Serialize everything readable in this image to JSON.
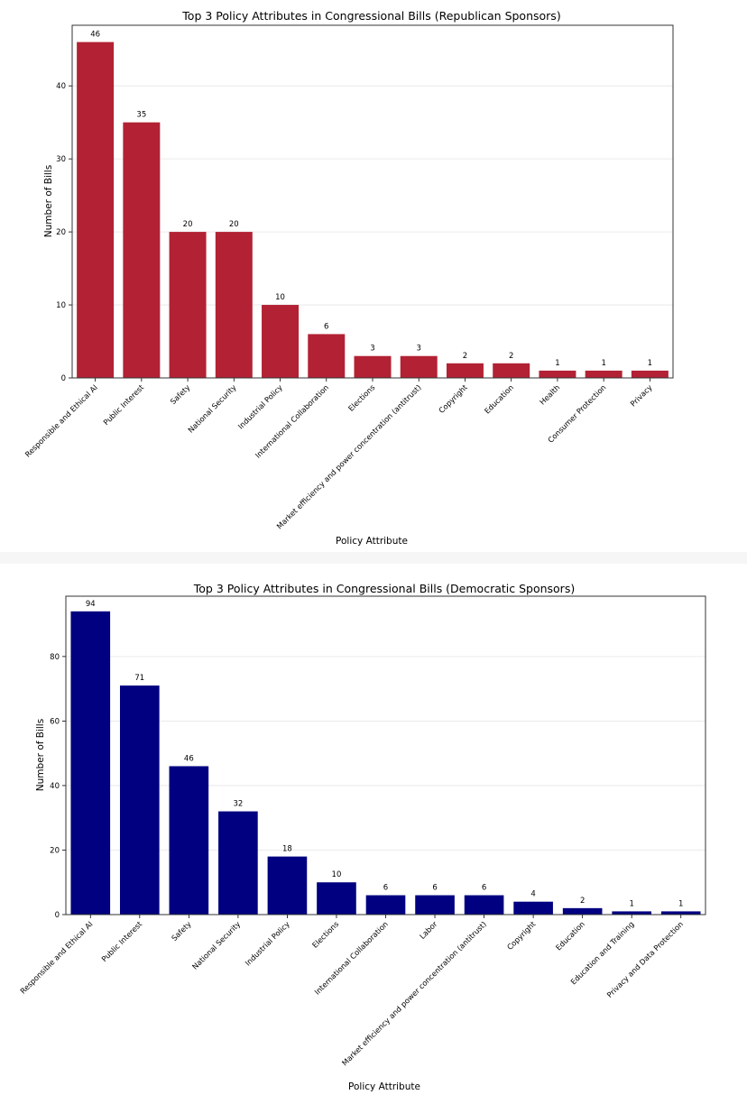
{
  "chart_data": [
    {
      "type": "bar",
      "title": "Top 3 Policy Attributes in Congressional Bills (Republican Sponsors)",
      "xlabel": "Policy Attribute",
      "ylabel": "Number of Bills",
      "categories": [
        "Responsible and Ethical AI",
        "Public Interest",
        "Safety",
        "National Security",
        "Industrial Policy",
        "International Collaboration",
        "Elections",
        "Market efficiency and power concentration (antitrust)",
        "Copyright",
        "Education",
        "Health",
        "Consumer Protection",
        "Privacy"
      ],
      "values": [
        46,
        35,
        20,
        20,
        10,
        6,
        3,
        3,
        2,
        2,
        1,
        1,
        1
      ],
      "yticks": [
        0,
        10,
        20,
        30,
        40
      ],
      "ylim": [
        0,
        48.3
      ],
      "grid": "horizontal",
      "bar_color": "#b22234"
    },
    {
      "type": "bar",
      "title": "Top 3 Policy Attributes in Congressional Bills (Democratic Sponsors)",
      "xlabel": "Policy Attribute",
      "ylabel": "Number of Bills",
      "categories": [
        "Responsible and Ethical AI",
        "Public Interest",
        "Safety",
        "National Security",
        "Industrial Policy",
        "Elections",
        "International Collaboration",
        "Labor",
        "Market efficiency and power concentration (antitrust)",
        "Copyright",
        "Education",
        "Education and Training",
        "Privacy and Data Protection"
      ],
      "values": [
        94,
        71,
        46,
        32,
        18,
        10,
        6,
        6,
        6,
        4,
        2,
        1,
        1
      ],
      "yticks": [
        0,
        20,
        40,
        60,
        80
      ],
      "ylim": [
        0,
        98.7
      ],
      "grid": "horizontal",
      "bar_color": "#000080"
    }
  ]
}
